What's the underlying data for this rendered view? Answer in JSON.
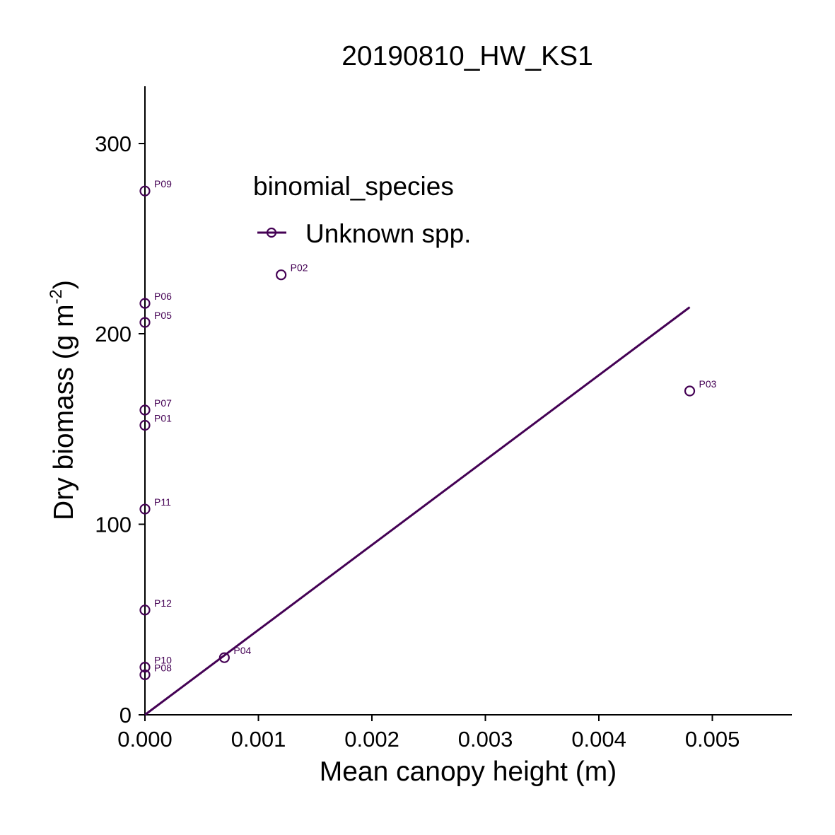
{
  "chart_data": {
    "type": "scatter",
    "title": "20190810_HW_KS1",
    "xlabel": "Mean canopy height (m)",
    "ylabel_main": "Dry biomass (g m",
    "ylabel_sup": "-2",
    "ylabel_end": ")",
    "xlim": [
      0,
      0.0057
    ],
    "ylim": [
      0,
      330
    ],
    "xticks": [
      0,
      0.001,
      0.002,
      0.003,
      0.004,
      0.005
    ],
    "xtick_labels": [
      "0.000",
      "0.001",
      "0.002",
      "0.003",
      "0.004",
      "0.005"
    ],
    "yticks": [
      0,
      100,
      200,
      300
    ],
    "ytick_labels": [
      "0",
      "100",
      "200",
      "300"
    ],
    "grid": false,
    "legend": {
      "title": "binomial_species",
      "entries": [
        "Unknown spp."
      ],
      "placement": "top-left"
    },
    "color": "#440154",
    "series": [
      {
        "name": "Unknown spp.",
        "points": [
          {
            "label": "P09",
            "x": 0.0,
            "y": 275
          },
          {
            "label": "P02",
            "x": 0.0012,
            "y": 231
          },
          {
            "label": "P06",
            "x": 0.0,
            "y": 216
          },
          {
            "label": "P05",
            "x": 0.0,
            "y": 206
          },
          {
            "label": "P03",
            "x": 0.0048,
            "y": 170
          },
          {
            "label": "P07",
            "x": 0.0,
            "y": 160
          },
          {
            "label": "P01",
            "x": 0.0,
            "y": 152
          },
          {
            "label": "P11",
            "x": 0.0,
            "y": 108
          },
          {
            "label": "P12",
            "x": 0.0,
            "y": 55
          },
          {
            "label": "P04",
            "x": 0.0007,
            "y": 30
          },
          {
            "label": "P10",
            "x": 0.0,
            "y": 25
          },
          {
            "label": "P08",
            "x": 0.0,
            "y": 21
          }
        ],
        "fit_line": {
          "x": [
            0.0,
            0.0048
          ],
          "y": [
            0,
            214
          ]
        }
      }
    ]
  }
}
